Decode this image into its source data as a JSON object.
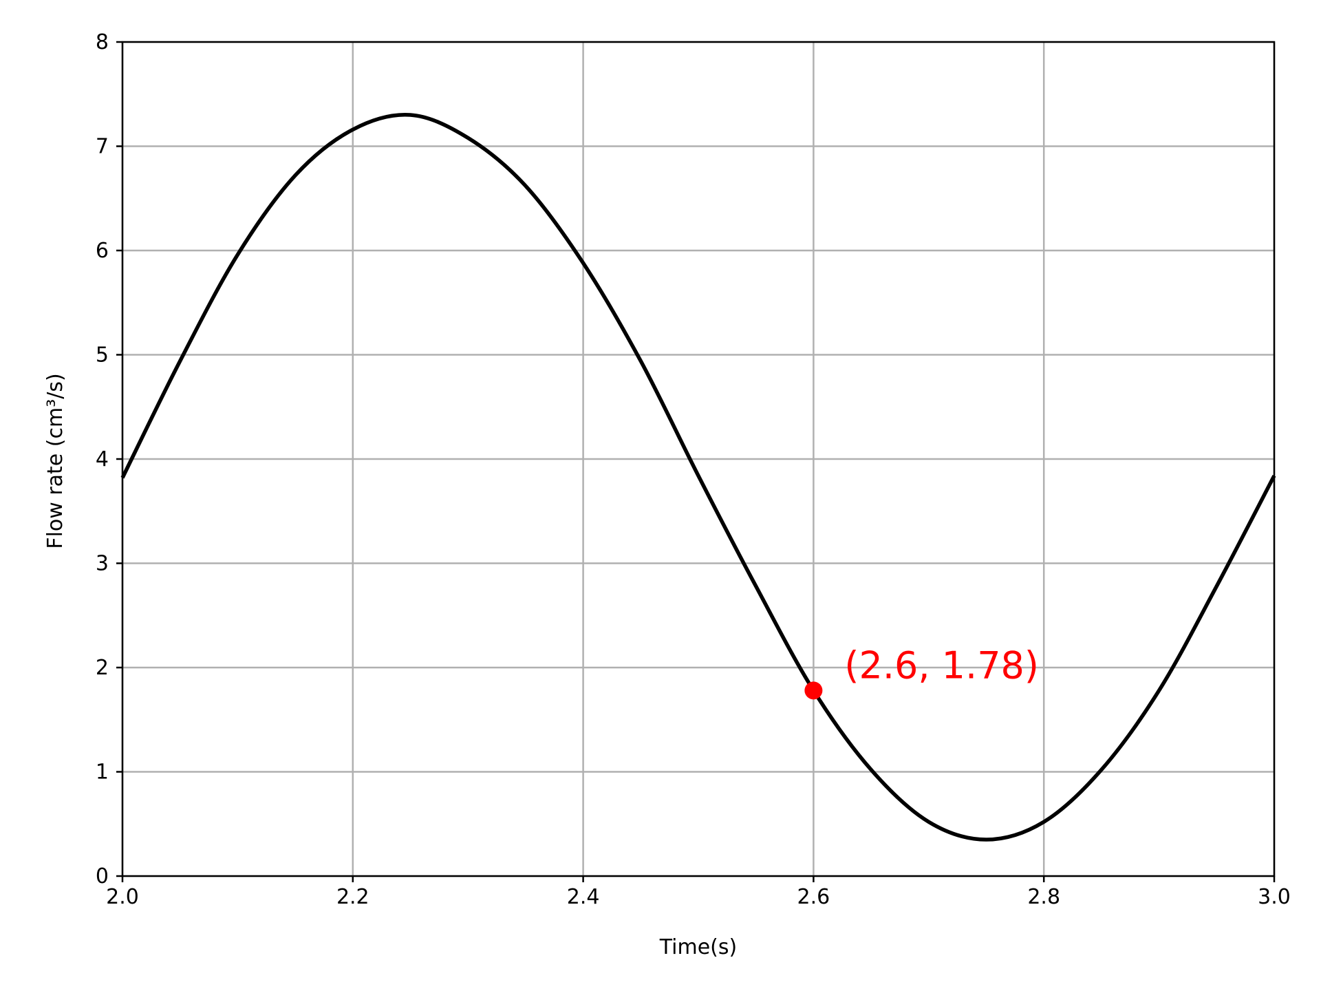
{
  "chart_data": {
    "type": "line",
    "title": "",
    "xlabel": "Time(s)",
    "ylabel": "Flow rate (cm³/s)",
    "xlim": [
      2.0,
      3.0
    ],
    "ylim": [
      0,
      8
    ],
    "x_ticks": [
      "2.0",
      "2.2",
      "2.4",
      "2.6",
      "2.8",
      "3.0"
    ],
    "y_ticks": [
      "0",
      "1",
      "2",
      "3",
      "4",
      "5",
      "6",
      "7",
      "8"
    ],
    "grid": true,
    "series": [
      {
        "x": [
          2.0,
          2.05,
          2.1,
          2.15,
          2.2,
          2.25,
          2.3,
          2.35,
          2.4,
          2.45,
          2.5,
          2.55,
          2.6,
          2.65,
          2.7,
          2.75,
          2.8,
          2.85,
          2.9,
          2.95,
          3.0
        ],
        "y": [
          3.82,
          4.94,
          5.96,
          6.72,
          7.16,
          7.3,
          7.08,
          6.62,
          5.88,
          4.94,
          3.84,
          2.78,
          1.78,
          1.02,
          0.52,
          0.35,
          0.52,
          1.02,
          1.78,
          2.78,
          3.84
        ]
      }
    ],
    "highlight": {
      "x": 2.6,
      "y": 1.78,
      "label": "(2.6, 1.78)"
    },
    "colors": {
      "line": "#000000",
      "highlight": "#ff0000",
      "grid": "#b0b0b0"
    }
  }
}
